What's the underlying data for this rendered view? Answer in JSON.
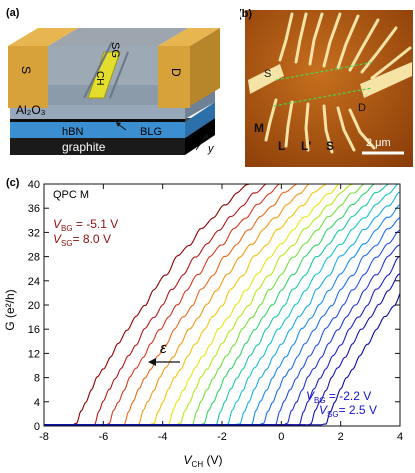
{
  "panel_a": {
    "label": "(a)",
    "labels": {
      "source": "S",
      "split_gate": "SG",
      "channel_gate": "CH",
      "drain": "D",
      "oxide": "Al₂O₃",
      "hbn": "hBN",
      "blg": "BLG",
      "graphite": "graphite",
      "axis": "y"
    },
    "colors": {
      "gold": "#d8a23a",
      "oxide": "#8ea0b4",
      "channel": "#e3de2e",
      "hbn": "#3b8fd0",
      "graphite": "#1a1a1a"
    }
  },
  "panel_b": {
    "label": "(b)",
    "labels": {
      "source": "S",
      "drain": "D",
      "m": "M",
      "l": "L",
      "lp": "L'",
      "s": "S",
      "scalebar": "2 μm"
    },
    "colors": {
      "background": "#b55a12",
      "electrode": "#f6e3a6"
    }
  },
  "panel_c": {
    "label": "(c)",
    "title": "QPC M",
    "annot_top_vbg": "-5.1 V",
    "annot_top_vsg": "8.0 V",
    "annot_bottom_vbg": "-2.2 V",
    "annot_bottom_vsg": "2.5 V",
    "epsilon": "ε",
    "xlabel_main": "V",
    "xlabel_sub": "CH",
    "xlabel_unit": "(V)",
    "ylabel": "G (e²/h)",
    "top_color": "#8b0f0f",
    "bottom_color": "#1212c8"
  },
  "chart_data": {
    "type": "line",
    "xlim": [
      -8,
      4
    ],
    "ylim": [
      0,
      40
    ],
    "xticks": [
      -8,
      -6,
      -4,
      -2,
      0,
      2,
      4
    ],
    "yticks": [
      0,
      4,
      8,
      12,
      16,
      20,
      24,
      28,
      32,
      36,
      40
    ],
    "grid": false,
    "series_count": 20,
    "trace_offsets_v": [
      -7.1,
      -6.5,
      -6.0,
      -5.5,
      -5.0,
      -4.5,
      -4.0,
      -3.6,
      -3.2,
      -2.8,
      -2.4,
      -2.0,
      -1.6,
      -1.2,
      -0.8,
      -0.4,
      0.0,
      0.4,
      0.8,
      1.3
    ],
    "staircase_template": {
      "x": [
        0.0,
        0.2,
        0.35,
        0.5,
        0.7,
        0.9,
        1.1,
        1.35,
        1.6,
        1.9,
        2.2,
        2.5,
        2.8,
        3.2,
        3.6,
        4.0,
        4.4,
        4.8,
        5.2,
        5.6,
        6.0
      ],
      "g": [
        0,
        0.3,
        2.5,
        4.0,
        6.0,
        8.0,
        9.5,
        11.5,
        13.5,
        16,
        18,
        20,
        22.5,
        25,
        28,
        30,
        32.5,
        34.5,
        36.5,
        38.5,
        40
      ]
    },
    "colors": [
      "#8b0000",
      "#b41a1a",
      "#d23a1e",
      "#e86a1a",
      "#f29a12",
      "#f5c40a",
      "#e8e614",
      "#b8e818",
      "#74e23a",
      "#36d46a",
      "#1ccaa0",
      "#16c4cc",
      "#18aee6",
      "#1a8cf0",
      "#1f6ef0",
      "#2450e6",
      "#2236d8",
      "#1a20c8",
      "#1414b8",
      "#0a0aa0"
    ]
  }
}
